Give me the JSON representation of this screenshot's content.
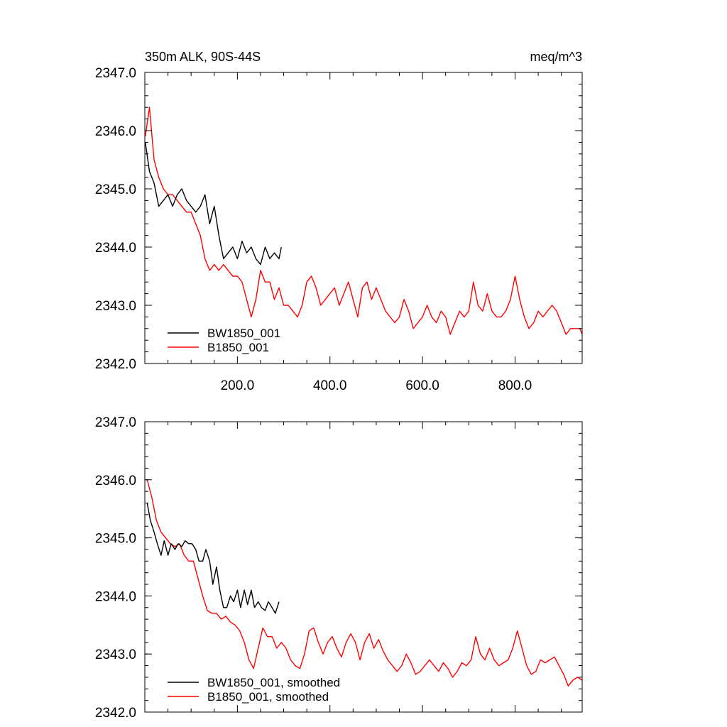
{
  "chart_data": [
    {
      "type": "line",
      "title": "350m ALK, 90S-44S",
      "units": "meq/m^3",
      "xlim": [
        0,
        945
      ],
      "ylim": [
        2342.0,
        2347.0
      ],
      "x_ticks": [
        200,
        400,
        600,
        800
      ],
      "x_tick_labels": [
        "200.0",
        "400.0",
        "600.0",
        "800.0"
      ],
      "y_ticks": [
        2342,
        2343,
        2344,
        2345,
        2346,
        2347
      ],
      "y_tick_labels": [
        "2342.0",
        "2343.0",
        "2344.0",
        "2345.0",
        "2346.0",
        "2347.0"
      ],
      "grid": false,
      "legend_position": "bottom-left",
      "series": [
        {
          "name": "BW1850_001",
          "color": "#000000",
          "x": [
            1,
            10,
            20,
            30,
            40,
            50,
            60,
            70,
            80,
            90,
            100,
            110,
            120,
            130,
            140,
            150,
            160,
            170,
            180,
            190,
            200,
            210,
            220,
            230,
            240,
            250,
            260,
            270,
            280,
            290,
            295
          ],
          "y": [
            2345.8,
            2345.3,
            2345.1,
            2344.7,
            2344.8,
            2344.9,
            2344.7,
            2344.9,
            2345.0,
            2344.8,
            2344.7,
            2344.6,
            2344.7,
            2344.9,
            2344.4,
            2344.7,
            2344.2,
            2343.8,
            2343.9,
            2344.0,
            2343.8,
            2344.1,
            2343.9,
            2344.0,
            2343.8,
            2343.7,
            2344.0,
            2343.8,
            2343.9,
            2343.8,
            2344.0
          ]
        },
        {
          "name": "B1850_001",
          "color": "#ff0000",
          "x": [
            1,
            10,
            20,
            30,
            40,
            50,
            60,
            70,
            80,
            90,
            100,
            110,
            120,
            130,
            140,
            150,
            160,
            170,
            180,
            190,
            200,
            210,
            220,
            230,
            240,
            250,
            260,
            270,
            280,
            290,
            300,
            310,
            320,
            330,
            340,
            350,
            360,
            370,
            380,
            390,
            400,
            410,
            420,
            430,
            440,
            450,
            460,
            470,
            480,
            490,
            500,
            510,
            520,
            530,
            540,
            550,
            560,
            570,
            580,
            590,
            600,
            610,
            620,
            630,
            640,
            650,
            660,
            670,
            680,
            690,
            700,
            710,
            720,
            730,
            740,
            750,
            760,
            770,
            780,
            790,
            800,
            810,
            820,
            830,
            840,
            850,
            860,
            870,
            880,
            890,
            900,
            910,
            920,
            930,
            940,
            945
          ],
          "y": [
            2345.9,
            2346.4,
            2345.5,
            2345.2,
            2345.0,
            2344.9,
            2344.9,
            2344.8,
            2344.7,
            2344.6,
            2344.6,
            2344.4,
            2344.2,
            2343.8,
            2343.6,
            2343.7,
            2343.6,
            2343.7,
            2343.6,
            2343.5,
            2343.5,
            2343.4,
            2343.1,
            2342.8,
            2343.1,
            2343.6,
            2343.4,
            2343.4,
            2343.1,
            2343.3,
            2343.0,
            2343.0,
            2342.9,
            2342.8,
            2343.0,
            2343.4,
            2343.5,
            2343.3,
            2343.0,
            2343.1,
            2343.2,
            2343.3,
            2343.0,
            2343.2,
            2343.4,
            2343.1,
            2342.8,
            2343.3,
            2343.4,
            2343.1,
            2343.3,
            2343.1,
            2342.9,
            2342.8,
            2342.7,
            2342.8,
            2343.1,
            2342.9,
            2342.6,
            2342.7,
            2342.8,
            2343.0,
            2342.8,
            2342.7,
            2342.9,
            2342.8,
            2342.5,
            2342.7,
            2342.9,
            2342.8,
            2342.9,
            2343.4,
            2343.0,
            2342.9,
            2343.2,
            2342.9,
            2342.8,
            2342.8,
            2342.9,
            2343.1,
            2343.5,
            2343.1,
            2342.8,
            2342.6,
            2342.7,
            2342.9,
            2342.8,
            2342.9,
            2343.0,
            2342.9,
            2342.7,
            2342.5,
            2342.6,
            2342.6,
            2342.6,
            2342.5
          ]
        }
      ]
    },
    {
      "type": "line",
      "title": "",
      "units": "",
      "xlim": [
        0,
        945
      ],
      "ylim": [
        2342.0,
        2347.0
      ],
      "x_ticks": [
        200,
        400,
        600,
        800
      ],
      "x_tick_labels": [],
      "y_ticks": [
        2342,
        2343,
        2344,
        2345,
        2346,
        2347
      ],
      "y_tick_labels": [
        "2342.0",
        "2343.0",
        "2344.0",
        "2345.0",
        "2346.0",
        "2347.0"
      ],
      "grid": false,
      "legend_position": "bottom-left",
      "series": [
        {
          "name": "BW1850_001, smoothed",
          "color": "#000000",
          "x": [
            5,
            12,
            20,
            27,
            35,
            42,
            50,
            57,
            65,
            72,
            80,
            87,
            95,
            102,
            110,
            117,
            125,
            132,
            140,
            147,
            155,
            162,
            170,
            177,
            185,
            192,
            200,
            207,
            215,
            222,
            230,
            237,
            245,
            252,
            260,
            267,
            275,
            282,
            290
          ],
          "y": [
            2345.6,
            2345.3,
            2345.1,
            2344.9,
            2344.7,
            2344.95,
            2344.7,
            2344.9,
            2344.8,
            2344.9,
            2344.85,
            2344.95,
            2344.9,
            2344.9,
            2344.8,
            2344.6,
            2344.6,
            2344.8,
            2344.6,
            2344.2,
            2344.5,
            2344.1,
            2343.8,
            2343.8,
            2344.0,
            2343.9,
            2344.1,
            2343.8,
            2344.1,
            2343.85,
            2344.1,
            2343.8,
            2343.9,
            2343.8,
            2343.75,
            2343.9,
            2343.8,
            2343.7,
            2343.9
          ]
        },
        {
          "name": "B1850_001, smoothed",
          "color": "#ff0000",
          "x": [
            5,
            15,
            25,
            35,
            45,
            55,
            65,
            75,
            85,
            95,
            105,
            115,
            125,
            135,
            145,
            155,
            165,
            175,
            185,
            195,
            205,
            215,
            225,
            235,
            245,
            255,
            265,
            275,
            285,
            295,
            305,
            315,
            325,
            335,
            345,
            355,
            365,
            375,
            385,
            395,
            405,
            415,
            425,
            435,
            445,
            455,
            465,
            475,
            485,
            495,
            505,
            515,
            525,
            535,
            545,
            555,
            565,
            575,
            585,
            595,
            605,
            615,
            625,
            635,
            645,
            655,
            665,
            675,
            685,
            695,
            705,
            715,
            725,
            735,
            745,
            755,
            765,
            775,
            785,
            795,
            805,
            815,
            825,
            835,
            845,
            855,
            865,
            875,
            885,
            895,
            905,
            915,
            925,
            935,
            945
          ],
          "y": [
            2346.0,
            2345.7,
            2345.3,
            2345.1,
            2345.0,
            2344.9,
            2344.85,
            2344.9,
            2344.7,
            2344.6,
            2344.6,
            2344.3,
            2344.0,
            2343.75,
            2343.7,
            2343.7,
            2343.6,
            2343.65,
            2343.55,
            2343.5,
            2343.4,
            2343.2,
            2342.9,
            2342.75,
            2343.1,
            2343.45,
            2343.3,
            2343.3,
            2343.1,
            2343.2,
            2343.1,
            2342.9,
            2342.8,
            2342.75,
            2343.0,
            2343.4,
            2343.45,
            2343.2,
            2343.0,
            2343.2,
            2343.3,
            2343.1,
            2342.95,
            2343.2,
            2343.35,
            2343.2,
            2342.9,
            2343.2,
            2343.35,
            2343.1,
            2343.25,
            2343.05,
            2342.9,
            2342.8,
            2342.7,
            2342.8,
            2343.0,
            2342.85,
            2342.65,
            2342.7,
            2342.8,
            2342.9,
            2342.8,
            2342.7,
            2342.85,
            2342.75,
            2342.6,
            2342.7,
            2342.85,
            2342.8,
            2342.9,
            2343.3,
            2343.0,
            2342.9,
            2343.1,
            2342.9,
            2342.8,
            2342.85,
            2342.9,
            2343.1,
            2343.4,
            2343.1,
            2342.8,
            2342.65,
            2342.7,
            2342.9,
            2342.85,
            2342.9,
            2342.95,
            2342.8,
            2342.65,
            2342.45,
            2342.55,
            2342.6,
            2342.55
          ]
        }
      ]
    }
  ]
}
